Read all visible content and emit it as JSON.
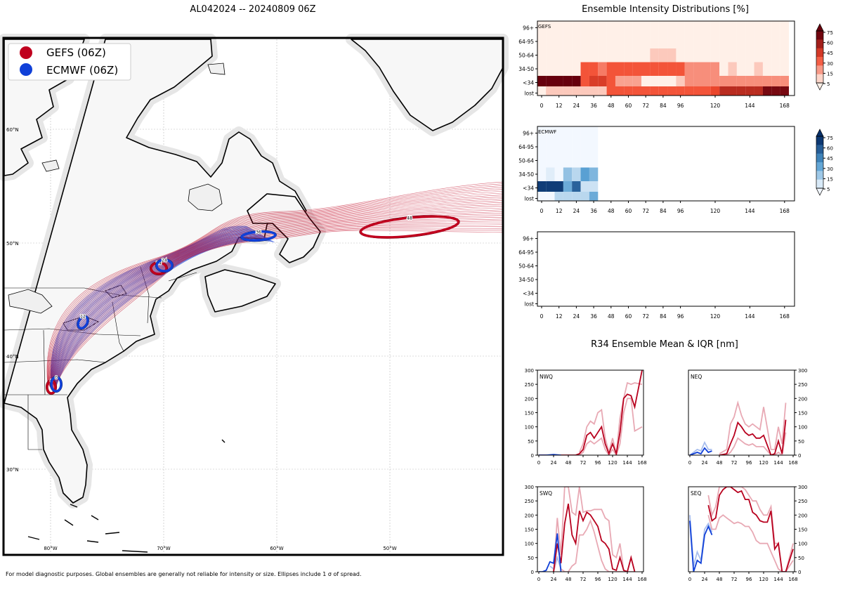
{
  "map": {
    "title": "AL042024 -- 20240809 06Z",
    "legend": [
      {
        "label": "GEFS (06Z)",
        "color": "#c0001e"
      },
      {
        "label": "ECMWF (06Z)",
        "color": "#1040d8"
      }
    ],
    "lat_labels": [
      "60°N",
      "50°N",
      "40°N",
      "30°N"
    ],
    "lon_labels": [
      "80°W",
      "70°W",
      "60°W",
      "50°W"
    ],
    "ellipse_labels": [
      "0",
      "12",
      "24",
      "36",
      "48"
    ],
    "footnote": "For model diagnostic purposes. Global ensembles are generally not reliable for intensity or size. Ellipses include 1 σ of spread."
  },
  "intensity": {
    "title": "Ensemble Intensity Distributions [%]",
    "y_labels": [
      "96+",
      "64-95",
      "50-64",
      "34-50",
      "<34",
      "lost"
    ],
    "x_labels": [
      "0",
      "12",
      "24",
      "36",
      "48",
      "60",
      "72",
      "84",
      "96",
      "120",
      "144",
      "168"
    ],
    "panels": [
      "GEFS",
      "ECMWF",
      ""
    ],
    "colorbar_ticks": [
      "75",
      "60",
      "45",
      "30",
      "15",
      "5"
    ],
    "colors": {
      "gefs_low": "#fff0e8",
      "gefs_high": "#67000d",
      "ecmwf_low": "#f3f8ff",
      "ecmwf_high": "#08306b"
    }
  },
  "r34": {
    "title": "R34 Ensemble Mean & IQR [nm]",
    "quadrants": [
      "NWQ",
      "NEQ",
      "SWQ",
      "SEQ"
    ],
    "y_ticks": [
      "0",
      "50",
      "100",
      "150",
      "200",
      "250",
      "300"
    ],
    "x_ticks": [
      "0",
      "24",
      "48",
      "72",
      "96",
      "120",
      "144",
      "168"
    ]
  },
  "chart_data": [
    {
      "type": "heatmap",
      "title": "GEFS",
      "x_hours": [
        0,
        6,
        12,
        18,
        24,
        30,
        36,
        42,
        48,
        54,
        60,
        66,
        72,
        78,
        84,
        90,
        96,
        102,
        108,
        114,
        120,
        126,
        132,
        138,
        144,
        150,
        156,
        162,
        168
      ],
      "rows": [
        "96+",
        "64-95",
        "50-64",
        "34-50",
        "<34",
        "lost"
      ],
      "values": [
        [
          5,
          5,
          5,
          5,
          5,
          5,
          5,
          5,
          5,
          5,
          5,
          5,
          5,
          5,
          5,
          5,
          5,
          5,
          5,
          5,
          5,
          5,
          5,
          5,
          5,
          5,
          5,
          5,
          5
        ],
        [
          5,
          5,
          5,
          5,
          5,
          5,
          5,
          5,
          5,
          5,
          5,
          5,
          5,
          5,
          5,
          5,
          5,
          5,
          5,
          5,
          5,
          5,
          5,
          5,
          5,
          5,
          5,
          5,
          5
        ],
        [
          5,
          5,
          5,
          5,
          5,
          5,
          5,
          5,
          5,
          5,
          5,
          5,
          5,
          15,
          15,
          15,
          5,
          5,
          5,
          5,
          5,
          5,
          5,
          5,
          5,
          5,
          5,
          5,
          5
        ],
        [
          5,
          5,
          5,
          5,
          5,
          45,
          45,
          35,
          45,
          45,
          45,
          45,
          45,
          45,
          45,
          45,
          45,
          30,
          30,
          30,
          30,
          5,
          15,
          5,
          5,
          15,
          5,
          5,
          5
        ],
        [
          90,
          90,
          90,
          90,
          90,
          45,
          55,
          55,
          45,
          25,
          25,
          25,
          5,
          5,
          5,
          5,
          15,
          30,
          30,
          30,
          30,
          30,
          30,
          30,
          30,
          30,
          30,
          30,
          30
        ],
        [
          5,
          15,
          15,
          15,
          15,
          15,
          15,
          15,
          45,
          45,
          45,
          45,
          45,
          45,
          45,
          45,
          45,
          45,
          45,
          45,
          50,
          65,
          65,
          65,
          65,
          65,
          85,
          85,
          85
        ]
      ]
    },
    {
      "type": "heatmap",
      "title": "ECMWF",
      "x_hours": [
        0,
        6,
        12,
        18,
        24,
        30,
        36
      ],
      "rows": [
        "96+",
        "64-95",
        "50-64",
        "34-50",
        "<34",
        "lost"
      ],
      "values": [
        [
          5,
          5,
          5,
          5,
          5,
          5,
          5
        ],
        [
          5,
          5,
          5,
          5,
          5,
          5,
          5
        ],
        [
          5,
          5,
          5,
          5,
          5,
          5,
          5
        ],
        [
          5,
          10,
          5,
          30,
          20,
          45,
          35
        ],
        [
          85,
          85,
          85,
          40,
          70,
          15,
          15
        ],
        [
          5,
          5,
          20,
          20,
          20,
          20,
          40
        ]
      ]
    },
    {
      "type": "line",
      "title": "NWQ",
      "ylim": [
        0,
        300
      ],
      "series": [
        {
          "name": "GEFS mean",
          "x": [
            0,
            12,
            24,
            36,
            48,
            60,
            66,
            72,
            78,
            84,
            90,
            96,
            102,
            108,
            114,
            120,
            126,
            132,
            138,
            144,
            150,
            156,
            168
          ],
          "y": [
            0,
            0,
            0,
            0,
            0,
            0,
            5,
            20,
            70,
            80,
            60,
            80,
            100,
            40,
            5,
            40,
            5,
            80,
            200,
            215,
            210,
            170,
            300
          ]
        },
        {
          "name": "GEFS IQR upper",
          "x": [
            66,
            72,
            78,
            84,
            90,
            96,
            102,
            108,
            114,
            120,
            126,
            132,
            138,
            144,
            150,
            156,
            168
          ],
          "y": [
            10,
            40,
            100,
            120,
            110,
            150,
            160,
            60,
            10,
            60,
            5,
            130,
            200,
            255,
            250,
            255,
            250
          ]
        },
        {
          "name": "GEFS IQR lower",
          "x": [
            66,
            72,
            78,
            84,
            90,
            96,
            102,
            108,
            114,
            120,
            126,
            132,
            138,
            144,
            150,
            156,
            168
          ],
          "y": [
            0,
            10,
            40,
            50,
            40,
            50,
            60,
            20,
            0,
            20,
            0,
            40,
            150,
            200,
            200,
            85,
            100
          ]
        },
        {
          "name": "ECMWF mean",
          "x": [
            0,
            12,
            24,
            36
          ],
          "y": [
            0,
            0,
            2,
            0
          ]
        }
      ]
    },
    {
      "type": "line",
      "title": "NEQ",
      "ylim": [
        0,
        300
      ],
      "series": [
        {
          "name": "GEFS mean",
          "x": [
            48,
            60,
            66,
            72,
            78,
            84,
            90,
            96,
            102,
            108,
            114,
            120,
            132,
            138,
            144,
            150,
            156
          ],
          "y": [
            0,
            5,
            40,
            70,
            115,
            100,
            80,
            70,
            75,
            60,
            60,
            70,
            0,
            5,
            50,
            5,
            125
          ]
        },
        {
          "name": "GEFS IQR upper",
          "x": [
            48,
            60,
            66,
            72,
            78,
            84,
            90,
            96,
            102,
            108,
            114,
            120,
            132,
            138,
            144,
            150,
            156
          ],
          "y": [
            5,
            20,
            110,
            135,
            185,
            140,
            110,
            100,
            110,
            100,
            90,
            170,
            20,
            20,
            100,
            40,
            185
          ]
        },
        {
          "name": "GEFS IQR lower",
          "x": [
            48,
            60,
            66,
            72,
            78,
            84,
            90,
            96,
            102,
            108,
            114,
            120,
            132,
            138,
            144,
            150,
            156
          ],
          "y": [
            0,
            0,
            10,
            30,
            60,
            50,
            40,
            35,
            40,
            30,
            30,
            30,
            0,
            0,
            10,
            0,
            80
          ]
        },
        {
          "name": "ECMWF mean",
          "x": [
            0,
            6,
            12,
            18,
            24,
            30,
            36
          ],
          "y": [
            0,
            5,
            10,
            5,
            25,
            10,
            15
          ]
        },
        {
          "name": "ECMWF IQR upper",
          "x": [
            0,
            6,
            12,
            18,
            24,
            30,
            36
          ],
          "y": [
            0,
            10,
            20,
            15,
            45,
            20,
            20
          ]
        }
      ]
    },
    {
      "type": "line",
      "title": "SWQ",
      "ylim": [
        0,
        300
      ],
      "series": [
        {
          "name": "GEFS mean",
          "x": [
            24,
            30,
            36,
            42,
            48,
            54,
            60,
            66,
            72,
            78,
            84,
            90,
            96,
            102,
            108,
            114,
            120,
            126,
            132,
            138,
            144,
            150,
            156
          ],
          "y": [
            0,
            100,
            30,
            170,
            240,
            130,
            100,
            215,
            180,
            210,
            200,
            180,
            160,
            110,
            100,
            80,
            10,
            5,
            50,
            5,
            0,
            50,
            0
          ]
        },
        {
          "name": "GEFS IQR upper",
          "x": [
            24,
            30,
            36,
            42,
            48,
            54,
            60,
            66,
            72,
            78,
            84,
            90,
            96,
            102,
            108,
            114,
            120,
            126,
            132,
            138,
            144,
            150,
            156
          ],
          "y": [
            0,
            190,
            60,
            300,
            300,
            210,
            200,
            300,
            210,
            215,
            215,
            220,
            220,
            220,
            190,
            180,
            60,
            50,
            100,
            5,
            0,
            50,
            0
          ]
        },
        {
          "name": "GEFS IQR lower",
          "x": [
            24,
            30,
            36,
            42,
            48,
            54,
            60,
            66,
            72,
            78,
            84,
            90,
            96,
            102,
            108,
            114,
            120,
            126,
            132,
            138,
            144,
            150,
            156
          ],
          "y": [
            0,
            50,
            10,
            0,
            0,
            20,
            30,
            130,
            130,
            150,
            180,
            140,
            90,
            40,
            10,
            0,
            0,
            0,
            0,
            0,
            0,
            0,
            0
          ]
        },
        {
          "name": "ECMWF mean",
          "x": [
            0,
            6,
            12,
            18,
            24,
            30,
            36
          ],
          "y": [
            0,
            0,
            5,
            35,
            30,
            135,
            0
          ]
        },
        {
          "name": "ECMWF IQR upper",
          "x": [
            18,
            24,
            30,
            36
          ],
          "y": [
            20,
            10,
            50,
            10
          ]
        }
      ]
    },
    {
      "type": "line",
      "title": "SEQ",
      "ylim": [
        0,
        300
      ],
      "series": [
        {
          "name": "GEFS mean",
          "x": [
            30,
            36,
            42,
            48,
            54,
            60,
            66,
            72,
            78,
            84,
            90,
            96,
            102,
            108,
            114,
            120,
            126,
            132,
            138,
            144,
            150,
            156,
            168
          ],
          "y": [
            235,
            180,
            190,
            270,
            290,
            300,
            300,
            290,
            280,
            285,
            255,
            255,
            210,
            200,
            180,
            175,
            175,
            215,
            80,
            100,
            0,
            0,
            80
          ]
        },
        {
          "name": "GEFS IQR upper",
          "x": [
            30,
            36,
            42,
            48,
            54,
            60,
            66,
            72,
            78,
            84,
            90,
            96,
            102,
            108,
            114,
            120,
            126,
            132,
            138,
            144,
            150,
            156,
            168
          ],
          "y": [
            270,
            200,
            230,
            300,
            300,
            300,
            300,
            300,
            300,
            300,
            290,
            270,
            250,
            250,
            220,
            200,
            200,
            230,
            100,
            100,
            0,
            0,
            100
          ]
        },
        {
          "name": "GEFS IQR lower",
          "x": [
            30,
            36,
            42,
            48,
            54,
            60,
            66,
            72,
            78,
            84,
            90,
            96,
            102,
            108,
            114,
            120,
            126,
            132,
            138,
            144,
            150,
            156,
            168
          ],
          "y": [
            200,
            150,
            150,
            190,
            200,
            190,
            180,
            170,
            175,
            170,
            160,
            160,
            140,
            110,
            100,
            100,
            100,
            70,
            40,
            10,
            0,
            0,
            40
          ]
        },
        {
          "name": "ECMWF mean",
          "x": [
            0,
            6,
            12,
            18,
            24,
            30,
            36
          ],
          "y": [
            180,
            0,
            40,
            30,
            130,
            160,
            130
          ]
        },
        {
          "name": "ECMWF IQR upper",
          "x": [
            0,
            6,
            12,
            18,
            24,
            30,
            36
          ],
          "y": [
            200,
            20,
            70,
            40,
            150,
            170,
            140
          ]
        }
      ]
    }
  ]
}
